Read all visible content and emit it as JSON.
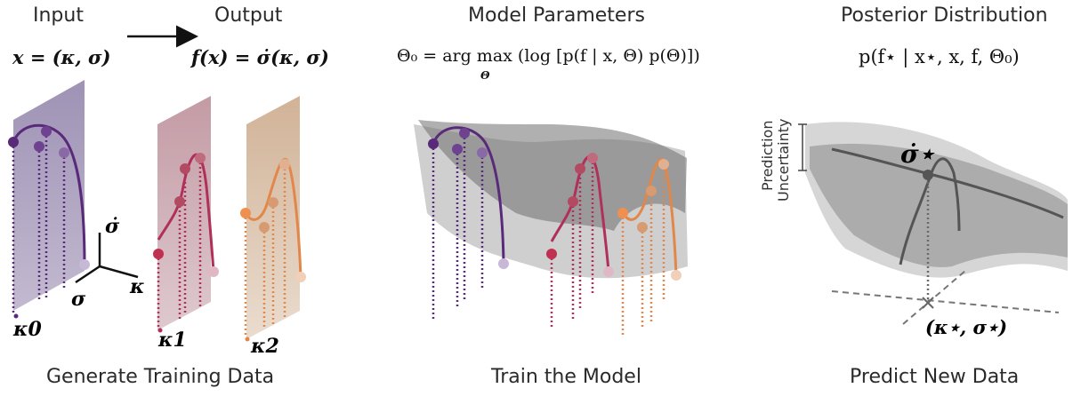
{
  "headers": {
    "input": "Input",
    "output": "Output",
    "model_parameters": "Model Parameters",
    "posterior": "Posterior Distribution"
  },
  "equations": {
    "input_eq": "x = (κ, σ)",
    "output_eq": "f(x) = σ̇(κ, σ)",
    "params_eq": "Θ₀ = arg max (log [p(f | x, Θ) p(Θ)])",
    "params_under": "Θ",
    "posterior_eq": "p(f⋆ | x⋆, x, f, Θ₀)"
  },
  "axis_labels": {
    "sigma_dot": "σ̇",
    "sigma": "σ",
    "kappa": "κ",
    "kappa0": "κ0",
    "kappa1": "κ1",
    "kappa2": "κ2"
  },
  "annotations": {
    "prediction_uncertainty_line1": "Prediction",
    "prediction_uncertainty_line2": "Uncertainty",
    "sigma_star": "σ̇⋆",
    "query_point": "(κ⋆, σ⋆)"
  },
  "footers": {
    "generate": "Generate Training Data",
    "train": "Train the Model",
    "predict": "Predict New Data"
  },
  "colors": {
    "purple": "#5a2a7a",
    "magenta": "#b0305a",
    "orange": "#e2874a",
    "gray_surface": "#8a8a8a"
  }
}
